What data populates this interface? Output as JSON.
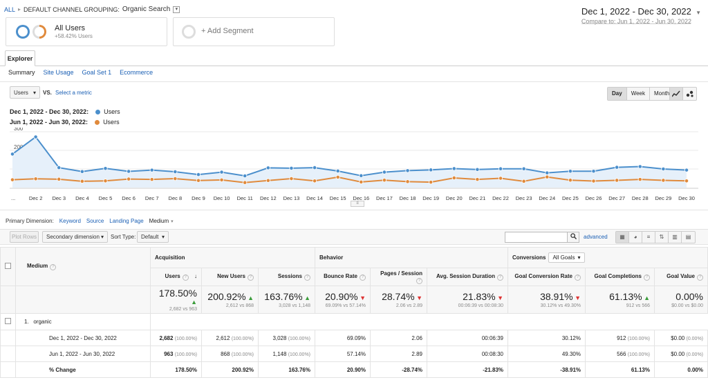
{
  "breadcrumb": {
    "all": "ALL",
    "grouping": "DEFAULT CHANNEL GROUPING:",
    "value": "Organic Search"
  },
  "date_range": {
    "main": "Dec 1, 2022 - Dec 30, 2022",
    "compare": "Compare to: Jun 1, 2022 - Jun 30, 2022"
  },
  "segments": {
    "all_users": "All Users",
    "all_users_sub": "+58.42% Users",
    "add_segment": "+ Add Segment"
  },
  "tabs": {
    "explorer": "Explorer",
    "summary": "Summary",
    "site_usage": "Site Usage",
    "goal_set": "Goal Set 1",
    "ecommerce": "Ecommerce"
  },
  "chart_controls": {
    "metric": "Users",
    "vs": "VS.",
    "select_metric": "Select a metric",
    "day": "Day",
    "week": "Week",
    "month": "Month"
  },
  "legend": [
    {
      "range": "Dec 1, 2022 - Dec 30, 2022:",
      "metric": "Users",
      "color": "#4b8fcc"
    },
    {
      "range": "Jun 1, 2022 - Jun 30, 2022:",
      "metric": "Users",
      "color": "#e08a3c"
    }
  ],
  "chart_data": {
    "type": "line",
    "x": [
      "Dec 1",
      "Dec 2",
      "Dec 3",
      "Dec 4",
      "Dec 5",
      "Dec 6",
      "Dec 7",
      "Dec 8",
      "Dec 9",
      "Dec 10",
      "Dec 11",
      "Dec 12",
      "Dec 13",
      "Dec 14",
      "Dec 15",
      "Dec 16",
      "Dec 17",
      "Dec 18",
      "Dec 19",
      "Dec 20",
      "Dec 21",
      "Dec 22",
      "Dec 23",
      "Dec 24",
      "Dec 25",
      "Dec 26",
      "Dec 27",
      "Dec 28",
      "Dec 29",
      "Dec 30"
    ],
    "x_tick_labels": [
      "...",
      "Dec 2",
      "Dec 3",
      "Dec 4",
      "Dec 5",
      "Dec 6",
      "Dec 7",
      "Dec 8",
      "Dec 9",
      "Dec 10",
      "Dec 11",
      "Dec 12",
      "Dec 13",
      "Dec 14",
      "Dec 15",
      "Dec 16",
      "Dec 17",
      "Dec 18",
      "Dec 19",
      "Dec 20",
      "Dec 21",
      "Dec 22",
      "Dec 23",
      "Dec 24",
      "Dec 25",
      "Dec 26",
      "Dec 27",
      "Dec 28",
      "Dec 29",
      "Dec 30"
    ],
    "y_ticks": [
      300,
      200,
      100
    ],
    "ylim": [
      0,
      300
    ],
    "series": [
      {
        "name": "Users",
        "color": "#4b8fcc",
        "values": [
          180,
          272,
          107,
          86,
          103,
          87,
          94,
          85,
          70,
          83,
          63,
          106,
          104,
          107,
          89,
          64,
          83,
          91,
          95,
          102,
          97,
          101,
          101,
          79,
          88,
          88,
          109,
          113,
          100,
          94
        ]
      },
      {
        "name": "Users",
        "color": "#e08a3c",
        "values": [
          42,
          47,
          45,
          34,
          36,
          46,
          44,
          48,
          38,
          41,
          27,
          38,
          48,
          36,
          56,
          30,
          40,
          32,
          29,
          52,
          44,
          50,
          34,
          57,
          40,
          35,
          39,
          44,
          39,
          36
        ]
      }
    ]
  },
  "primary_dimension": {
    "label": "Primary Dimension:",
    "options": [
      "Keyword",
      "Source",
      "Landing Page"
    ],
    "active": "Medium"
  },
  "table_toolbar": {
    "plot_rows": "Plot Rows",
    "secondary_dimension": "Secondary dimension",
    "sort_type_label": "Sort Type:",
    "sort_type": "Default",
    "advanced": "advanced"
  },
  "table": {
    "groups": {
      "medium": "Medium",
      "acquisition": "Acquisition",
      "behavior": "Behavior",
      "conversions": "Conversions",
      "all_goals": "All Goals"
    },
    "columns": [
      "Users",
      "New Users",
      "Sessions",
      "Bounce Rate",
      "Pages / Session",
      "Avg. Session Duration",
      "Goal Conversion Rate",
      "Goal Completions",
      "Goal Value"
    ],
    "totals": [
      {
        "big": "178.50%",
        "dir": "up",
        "sub": "2,682 vs 963"
      },
      {
        "big": "200.92%",
        "dir": "up",
        "sub": "2,612 vs 868"
      },
      {
        "big": "163.76%",
        "dir": "up",
        "sub": "3,028 vs 1,148"
      },
      {
        "big": "20.90%",
        "dir": "down",
        "sub": "69.09% vs 57.14%"
      },
      {
        "big": "28.74%",
        "dir": "down",
        "sub": "2.06 vs 2.89"
      },
      {
        "big": "21.83%",
        "dir": "down",
        "sub": "00:06:39 vs 00:08:30"
      },
      {
        "big": "38.91%",
        "dir": "down",
        "sub": "30.12% vs 49.30%"
      },
      {
        "big": "61.13%",
        "dir": "up",
        "sub": "912 vs 566"
      },
      {
        "big": "0.00%",
        "dir": "none",
        "sub": "$0.00 vs $0.00"
      }
    ],
    "row_index": "1.",
    "row_name": "organic",
    "rows": [
      {
        "label": "Dec 1, 2022 - Dec 30, 2022",
        "cells": [
          [
            "2,682",
            "(100.00%)"
          ],
          [
            "2,612",
            "(100.00%)"
          ],
          [
            "3,028",
            "(100.00%)"
          ],
          [
            "69.09%",
            ""
          ],
          [
            "2.06",
            ""
          ],
          [
            "00:06:39",
            ""
          ],
          [
            "30.12%",
            ""
          ],
          [
            "912",
            "(100.00%)"
          ],
          [
            "$0.00",
            "(0.00%)"
          ]
        ]
      },
      {
        "label": "Jun 1, 2022 - Jun 30, 2022",
        "cells": [
          [
            "963",
            "(100.00%)"
          ],
          [
            "868",
            "(100.00%)"
          ],
          [
            "1,148",
            "(100.00%)"
          ],
          [
            "57.14%",
            ""
          ],
          [
            "2.89",
            ""
          ],
          [
            "00:08:30",
            ""
          ],
          [
            "49.30%",
            ""
          ],
          [
            "566",
            "(100.00%)"
          ],
          [
            "$0.00",
            "(0.00%)"
          ]
        ]
      },
      {
        "label": "% Change",
        "cells": [
          [
            "178.50%",
            ""
          ],
          [
            "200.92%",
            ""
          ],
          [
            "163.76%",
            ""
          ],
          [
            "20.90%",
            ""
          ],
          [
            "-28.74%",
            ""
          ],
          [
            "-21.83%",
            ""
          ],
          [
            "-38.91%",
            ""
          ],
          [
            "61.13%",
            ""
          ],
          [
            "0.00%",
            ""
          ]
        ]
      }
    ]
  }
}
